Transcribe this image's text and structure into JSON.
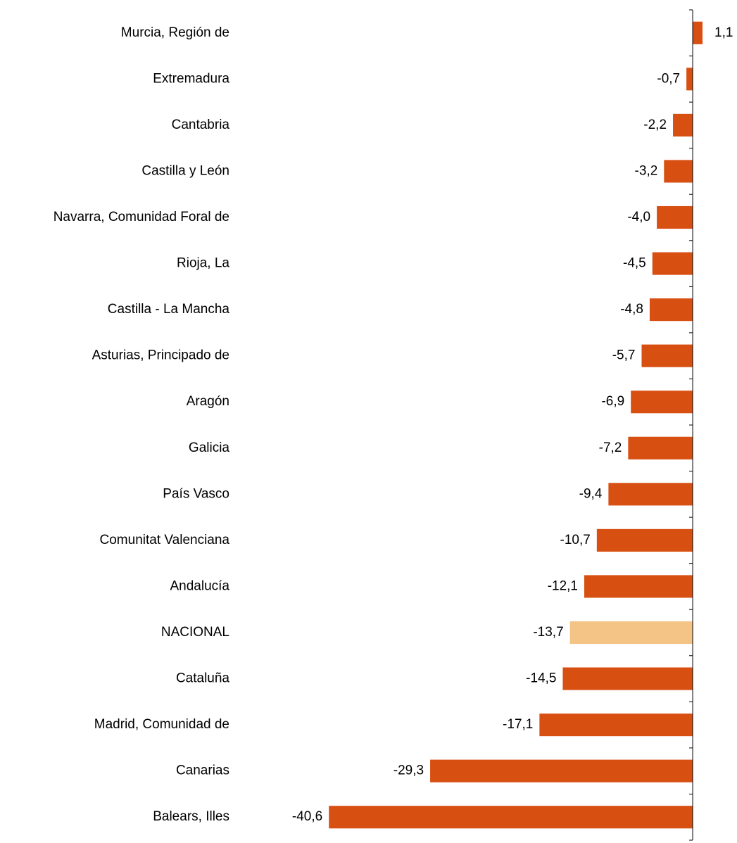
{
  "chart_data": {
    "type": "barh",
    "categories": [
      "Murcia, Región de",
      "Extremadura",
      "Cantabria",
      "Castilla y León",
      "Navarra, Comunidad Foral de",
      "Rioja, La",
      "Castilla - La Mancha",
      "Asturias, Principado de",
      "Aragón",
      "Galicia",
      "País Vasco",
      "Comunitat Valenciana",
      "Andalucía",
      "NACIONAL",
      "Cataluña",
      "Madrid, Comunidad de",
      "Canarias",
      "Balears, Illes"
    ],
    "values": [
      1.1,
      -0.7,
      -2.2,
      -3.2,
      -4.0,
      -4.5,
      -4.8,
      -5.7,
      -6.9,
      -7.2,
      -9.4,
      -10.7,
      -12.1,
      -13.7,
      -14.5,
      -17.1,
      -29.3,
      -40.6
    ],
    "value_labels": [
      "1,1",
      "-0,7",
      "-2,2",
      "-3,2",
      "-4,0",
      "-4,5",
      "-4,8",
      "-5,7",
      "-6,9",
      "-7,2",
      "-9,4",
      "-10,7",
      "-12,1",
      "-13,7",
      "-14,5",
      "-17,1",
      "-29,3",
      "-40,6"
    ],
    "colors": [
      "#d84f12",
      "#d84f12",
      "#d84f12",
      "#d84f12",
      "#d84f12",
      "#d84f12",
      "#d84f12",
      "#d84f12",
      "#d84f12",
      "#d84f12",
      "#d84f12",
      "#d84f12",
      "#d84f12",
      "#f4c486",
      "#d84f12",
      "#d84f12",
      "#d84f12",
      "#d84f12"
    ],
    "xlim": [
      -42,
      2
    ]
  }
}
